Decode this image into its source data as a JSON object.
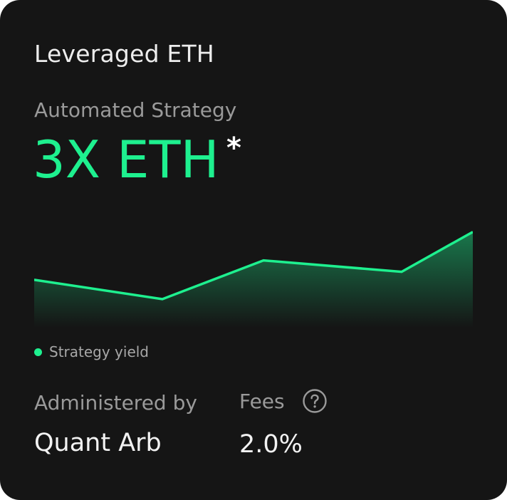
{
  "card": {
    "title": "Leveraged ETH",
    "subtitle": "Automated Strategy",
    "headline": "3X ETH",
    "asterisk": "*",
    "legend_label": "Strategy yield",
    "administered_label": "Administered by",
    "administered_value": "Quant Arb",
    "fees_label": "Fees",
    "fees_value": "2.0%"
  },
  "icons": {
    "help": "question-circle-icon"
  },
  "colors": {
    "accent": "#1ef08f",
    "background": "#151515"
  },
  "chart_data": {
    "type": "area",
    "title": "",
    "xlabel": "",
    "ylabel": "",
    "series": [
      {
        "name": "Strategy yield",
        "values": [
          4.2,
          2.5,
          5.9,
          4.9,
          8.4
        ]
      }
    ],
    "ylim": [
      0,
      10
    ],
    "grid": false,
    "legend": "bottom-left"
  }
}
